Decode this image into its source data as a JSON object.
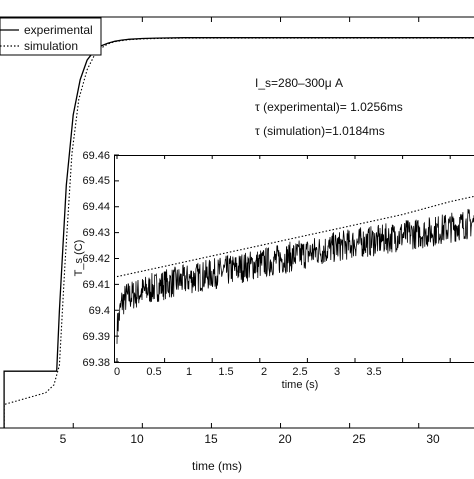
{
  "chart_data": [
    {
      "type": "line",
      "title": "",
      "xlabel": "time (ms)",
      "ylabel": "",
      "xlim": [
        -0.3,
        34.0
      ],
      "ylim": [
        0,
        1.05
      ],
      "x_ticks": [
        5,
        10,
        15,
        20,
        25,
        30
      ],
      "grid": false,
      "legend": {
        "placement": "top-left",
        "entries": [
          "experimental",
          "simulation"
        ]
      },
      "annotations": [
        "I_s=280–300μ A",
        "τ (experimental)= 1.0256ms",
        "τ (simulation)=1.0184ms"
      ],
      "series": [
        {
          "name": "experimental",
          "style": "solid",
          "x": [
            0,
            0,
            3.8,
            4.0,
            4.5,
            5.0,
            5.5,
            6.0,
            6.5,
            7.0,
            7.5,
            8.0,
            8.5,
            9.0,
            10.0,
            11.0,
            13.0,
            34.0
          ],
          "y": [
            0.0,
            0.145,
            0.145,
            0.3,
            0.62,
            0.8,
            0.89,
            0.94,
            0.963,
            0.976,
            0.983,
            0.988,
            0.991,
            0.993,
            0.995,
            0.996,
            0.997,
            0.997
          ]
        },
        {
          "name": "simulation",
          "style": "dotted",
          "x": [
            0,
            0,
            3.0,
            3.6,
            4.0,
            4.4,
            4.9,
            5.4,
            6.0,
            6.5,
            7.0,
            7.5,
            8.0,
            9.0,
            10.0,
            11.0,
            13.0,
            34.0
          ],
          "y": [
            0.0,
            0.06,
            0.09,
            0.11,
            0.16,
            0.42,
            0.7,
            0.84,
            0.915,
            0.95,
            0.97,
            0.981,
            0.987,
            0.992,
            0.994,
            0.995,
            0.996,
            0.996
          ]
        }
      ]
    },
    {
      "type": "line",
      "title": "",
      "xlabel": "time (s)",
      "ylabel": "T_s (C)",
      "xlim": [
        0,
        3.75
      ],
      "ylim": [
        69.38,
        69.46
      ],
      "x_ticks": [
        0,
        0.5,
        1,
        1.5,
        2,
        2.5,
        3,
        3.5
      ],
      "x_tick_labels": [
        "0",
        "0.5",
        "1",
        "1.5",
        "2",
        "2.5",
        "3",
        "3.5"
      ],
      "y_ticks": [
        69.38,
        69.39,
        69.4,
        69.41,
        69.42,
        69.43,
        69.44,
        69.45,
        69.46
      ],
      "y_tick_labels": [
        "69.38",
        "69.39",
        "69.4",
        "69.41",
        "69.42",
        "69.43",
        "69.44",
        "69.45",
        "69.46"
      ],
      "grid": false,
      "series": [
        {
          "name": "experimental",
          "style": "solid-noisy",
          "x": [
            0,
            0.05,
            0.1,
            0.25,
            0.5,
            0.75,
            1.0,
            1.25,
            1.5,
            1.75,
            2.0,
            2.25,
            2.5,
            2.75,
            3.0,
            3.25,
            3.5,
            3.75
          ],
          "y": [
            69.393,
            69.403,
            69.405,
            69.407,
            69.41,
            69.412,
            69.414,
            69.416,
            69.418,
            69.42,
            69.422,
            69.424,
            69.426,
            69.427,
            69.429,
            69.43,
            69.432,
            69.434
          ],
          "noise_amplitude": 0.006
        },
        {
          "name": "simulation",
          "style": "dotted",
          "x": [
            0,
            0.5,
            1.0,
            1.5,
            2.0,
            2.5,
            3.0,
            3.5,
            3.75
          ],
          "y": [
            69.413,
            69.417,
            69.421,
            69.425,
            69.429,
            69.433,
            69.437,
            69.442,
            69.444
          ]
        }
      ]
    }
  ]
}
